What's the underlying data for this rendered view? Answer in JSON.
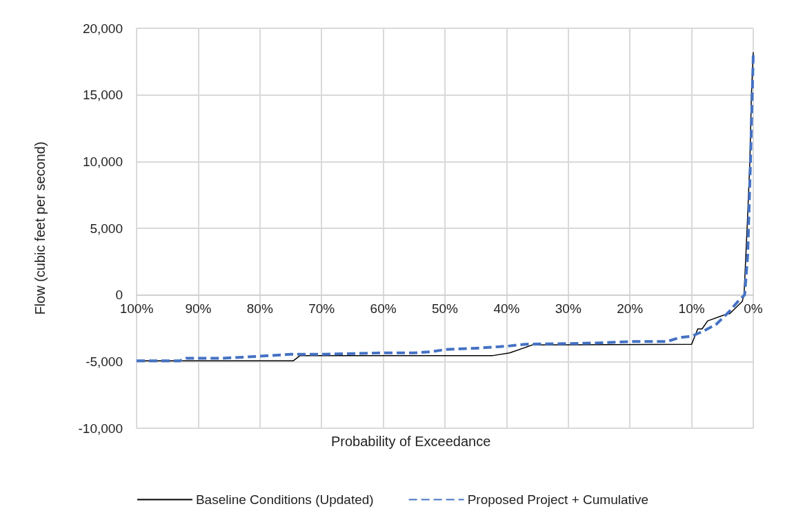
{
  "chart_data": {
    "type": "line",
    "xlabel": "Probability of Exceedance",
    "ylabel": "Flow (cubic feet per second)",
    "xlim": [
      100,
      0
    ],
    "xticks": [
      {
        "value": 100,
        "label": "100%"
      },
      {
        "value": 90,
        "label": "90%"
      },
      {
        "value": 80,
        "label": "80%"
      },
      {
        "value": 70,
        "label": "70%"
      },
      {
        "value": 60,
        "label": "60%"
      },
      {
        "value": 50,
        "label": "50%"
      },
      {
        "value": 40,
        "label": "40%"
      },
      {
        "value": 30,
        "label": "30%"
      },
      {
        "value": 20,
        "label": "20%"
      },
      {
        "value": 10,
        "label": "10%"
      },
      {
        "value": 0,
        "label": "0%"
      }
    ],
    "ylim": [
      -10000,
      20000
    ],
    "yticks": [
      {
        "value": -10000,
        "label": "-10,000"
      },
      {
        "value": -5000,
        "label": "-5,000"
      },
      {
        "value": 0,
        "label": "0"
      },
      {
        "value": 5000,
        "label": "5,000"
      },
      {
        "value": 10000,
        "label": "10,000"
      },
      {
        "value": 15000,
        "label": "15,000"
      },
      {
        "value": 20000,
        "label": "20,000"
      }
    ],
    "grid": true,
    "legend": "bottom",
    "marker": "none",
    "series": [
      {
        "name": "Baseline Conditions (Updated)",
        "color": "#000000",
        "line_style": "solid",
        "x": [
          100,
          74.6,
          73.5,
          42.2,
          39.5,
          35.8,
          10.0,
          9.0,
          8.3,
          7.4,
          4.4,
          3.8,
          1.8,
          1.5,
          1.0,
          0.55,
          0.3,
          0
        ],
        "values": [
          -4950,
          -4950,
          -4550,
          -4550,
          -4350,
          -3750,
          -3700,
          -2550,
          -2550,
          -1950,
          -1450,
          -1400,
          -500,
          0,
          5000,
          10000,
          15000,
          18200
        ]
      },
      {
        "name": "Proposed Project + Cumulative",
        "color": "#4472c4",
        "line_style": "dashed",
        "x": [
          100,
          93,
          92,
          86,
          80,
          75,
          70,
          65,
          60,
          55,
          52,
          50,
          45,
          40,
          37,
          30,
          25,
          20,
          14,
          12,
          10,
          8,
          6,
          4,
          2.5,
          1.4,
          0.9,
          0.45,
          0
        ],
        "values": [
          -4950,
          -4950,
          -4750,
          -4750,
          -4600,
          -4450,
          -4450,
          -4400,
          -4350,
          -4350,
          -4250,
          -4100,
          -4000,
          -3850,
          -3700,
          -3650,
          -3600,
          -3500,
          -3500,
          -3200,
          -3100,
          -2700,
          -2200,
          -1300,
          -500,
          0,
          3000,
          10000,
          18000
        ]
      }
    ]
  }
}
